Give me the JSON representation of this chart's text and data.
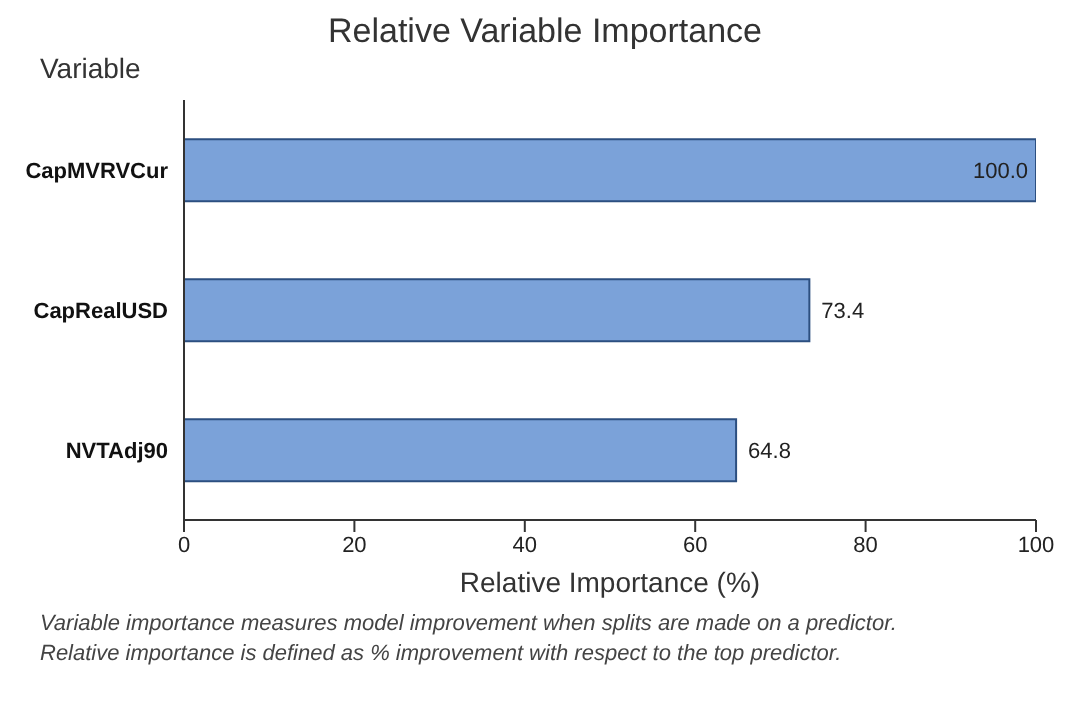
{
  "chart_data": {
    "type": "bar",
    "orientation": "horizontal",
    "title": "Relative Variable Importance",
    "ylabel": "Variable",
    "xlabel": "Relative Importance (%)",
    "categories": [
      "CapMVRVCur",
      "CapRealUSD",
      "NVTAdj90"
    ],
    "values": [
      100.0,
      73.4,
      64.8
    ],
    "value_labels": [
      "100.0",
      "73.4",
      "64.8"
    ],
    "color": "#7ba2d9",
    "xlim": [
      0,
      100
    ],
    "xticks": [
      0,
      20,
      40,
      60,
      80,
      100
    ],
    "grid": false,
    "annotations": [
      "Variable importance measures model improvement when splits are made on a predictor.",
      "Relative importance is defined as % improvement with respect to the top predictor."
    ]
  }
}
